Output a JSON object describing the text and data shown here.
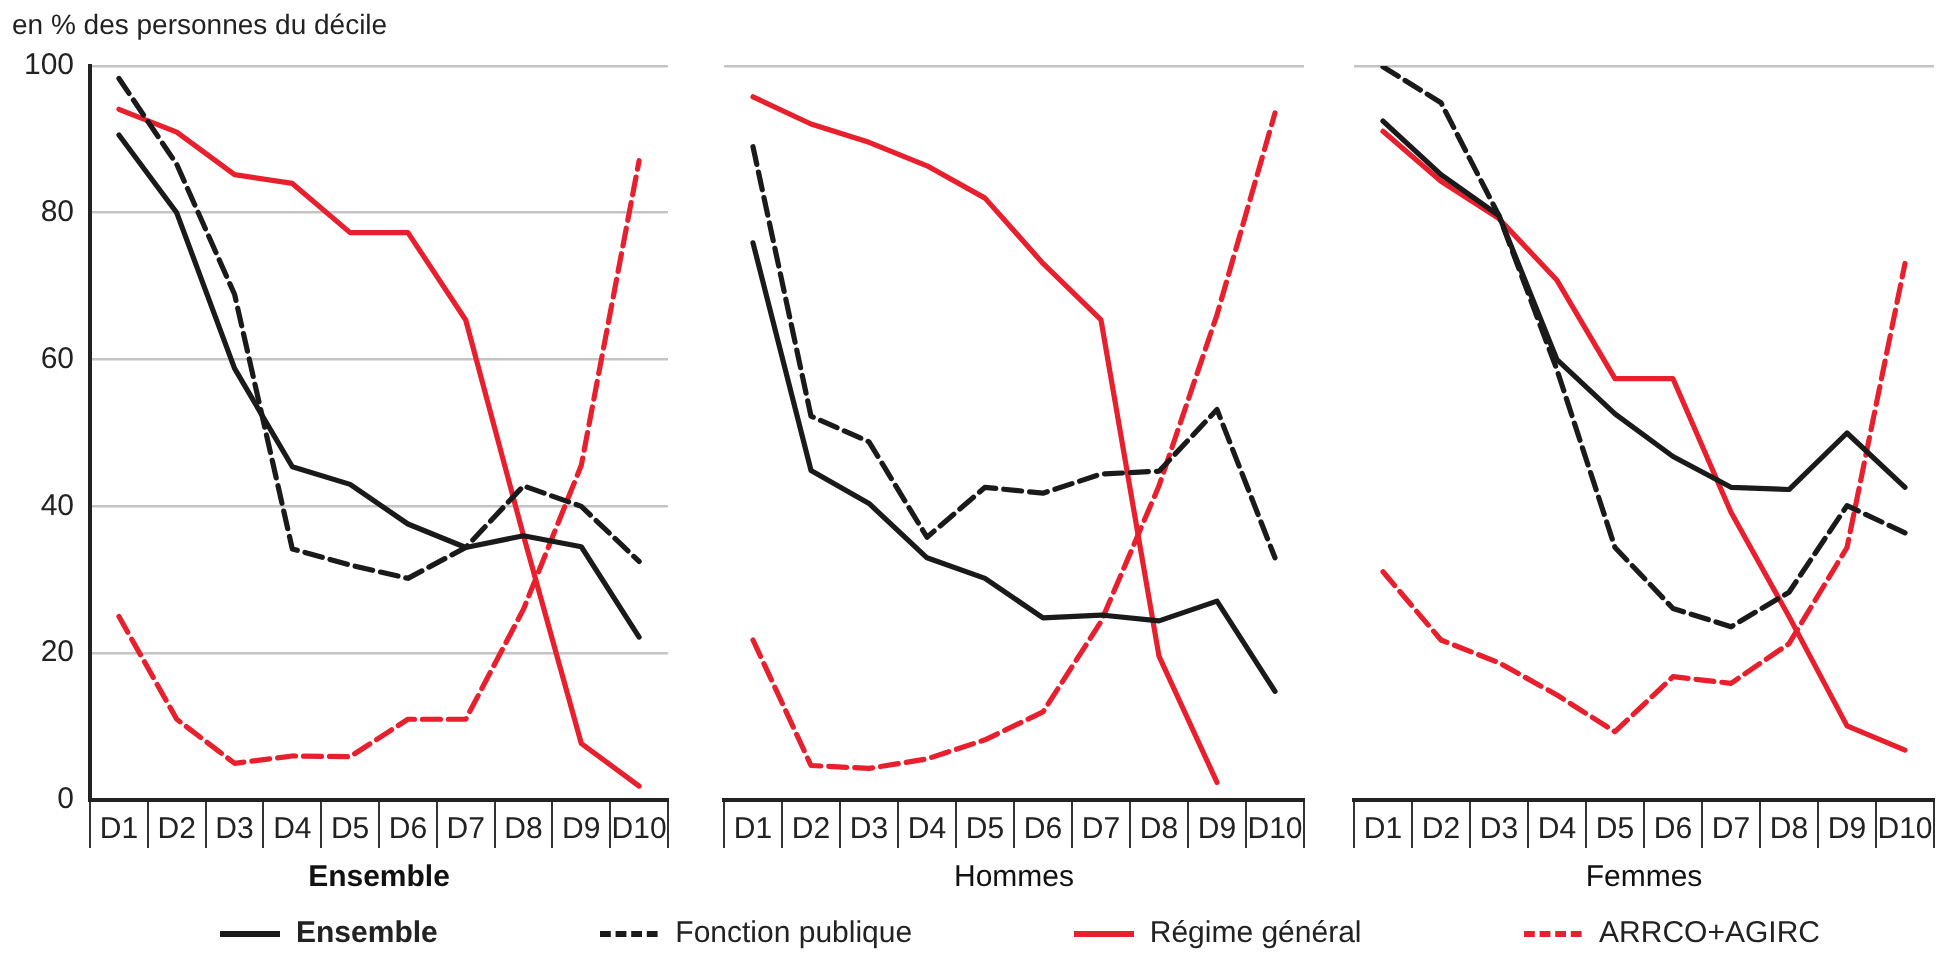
{
  "chart_data": [
    {
      "type": "line",
      "ylabel": "en % des personnes du décile",
      "xlabel": "Ensemble",
      "categories": [
        "D1",
        "D2",
        "D3",
        "D4",
        "D5",
        "D6",
        "D7",
        "D8",
        "D9",
        "D10"
      ],
      "ylim": [
        0,
        100
      ],
      "yticks": [
        0,
        20,
        40,
        60,
        80,
        100
      ],
      "grid": "y",
      "legend": "bottom",
      "marker": "none",
      "series": [
        {
          "name": "Ensemble",
          "color": "#1a1a1a",
          "line_style": "solid",
          "values": [
            90.6,
            80,
            58.8,
            45.4,
            43,
            37.6,
            34.4,
            36,
            34.5,
            22.2
          ]
        },
        {
          "name": "Fonction publique",
          "color": "#1a1a1a",
          "line_style": "dashed",
          "values": [
            98.3,
            86.6,
            68.9,
            34.2,
            32,
            30.2,
            34.4,
            42.8,
            40,
            32.5
          ]
        },
        {
          "name": "Régime général",
          "color": "#e8202e",
          "line_style": "solid",
          "values": [
            94.1,
            91,
            85.2,
            84,
            77.3,
            77.3,
            65.4,
            36,
            7.7,
            1.9
          ]
        },
        {
          "name": "ARRCO+AGIRC",
          "color": "#e8202e",
          "line_style": "dashed",
          "values": [
            25,
            11,
            5,
            6,
            5.9,
            11,
            11,
            26,
            45.6,
            87.1
          ]
        }
      ]
    },
    {
      "type": "line",
      "xlabel": "Hommes",
      "categories": [
        "D1",
        "D2",
        "D3",
        "D4",
        "D5",
        "D6",
        "D7",
        "D8",
        "D9",
        "D10"
      ],
      "ylim": [
        0,
        100
      ],
      "tick_labels": "x",
      "grid": "y",
      "marker": "none",
      "series": [
        {
          "color": "#1a1a1a",
          "line_style": "solid",
          "values": [
            75.9,
            44.9,
            40.4,
            33,
            30.2,
            24.8,
            25.2,
            24.4,
            27.1,
            14.8
          ]
        },
        {
          "color": "#1a1a1a",
          "line_style": "dashed",
          "values": [
            89,
            52.3,
            48.8,
            35.8,
            42.6,
            41.8,
            44.4,
            44.8,
            53.2,
            33
          ]
        },
        {
          "color": "#e8202e",
          "line_style": "solid",
          "values": [
            95.8,
            92.1,
            89.6,
            86.4,
            82,
            73.1,
            65.4,
            19.6,
            2.4,
            null
          ]
        },
        {
          "color": "#e8202e",
          "line_style": "dashed",
          "values": [
            21.8,
            4.7,
            4.3,
            5.6,
            8.2,
            12,
            24.3,
            42.8,
            66.1,
            93.6
          ]
        }
      ]
    },
    {
      "type": "line",
      "xlabel": "Femmes",
      "categories": [
        "D1",
        "D2",
        "D3",
        "D4",
        "D5",
        "D6",
        "D7",
        "D8",
        "D9",
        "D10"
      ],
      "ylim": [
        0,
        100
      ],
      "tick_labels": "x",
      "grid": "y",
      "marker": "none",
      "series": [
        {
          "color": "#1a1a1a",
          "line_style": "solid",
          "values": [
            92.5,
            85.2,
            79.6,
            60,
            52.6,
            46.8,
            42.6,
            42.3,
            50,
            42.6
          ]
        },
        {
          "color": "#1a1a1a",
          "line_style": "dashed",
          "values": [
            99.9,
            95,
            79.6,
            58.6,
            34.4,
            26.1,
            23.6,
            28.3,
            40.1,
            36.4
          ]
        },
        {
          "color": "#e8202e",
          "line_style": "solid",
          "values": [
            91.1,
            84.3,
            79.2,
            70.8,
            57.4,
            57.4,
            39.2,
            25,
            10.1,
            6.8
          ]
        },
        {
          "color": "#e8202e",
          "line_style": "dashed",
          "values": [
            31.1,
            21.8,
            18.7,
            14.3,
            9.3,
            16.8,
            15.9,
            21.3,
            34.4,
            73.1
          ]
        }
      ]
    }
  ]
}
